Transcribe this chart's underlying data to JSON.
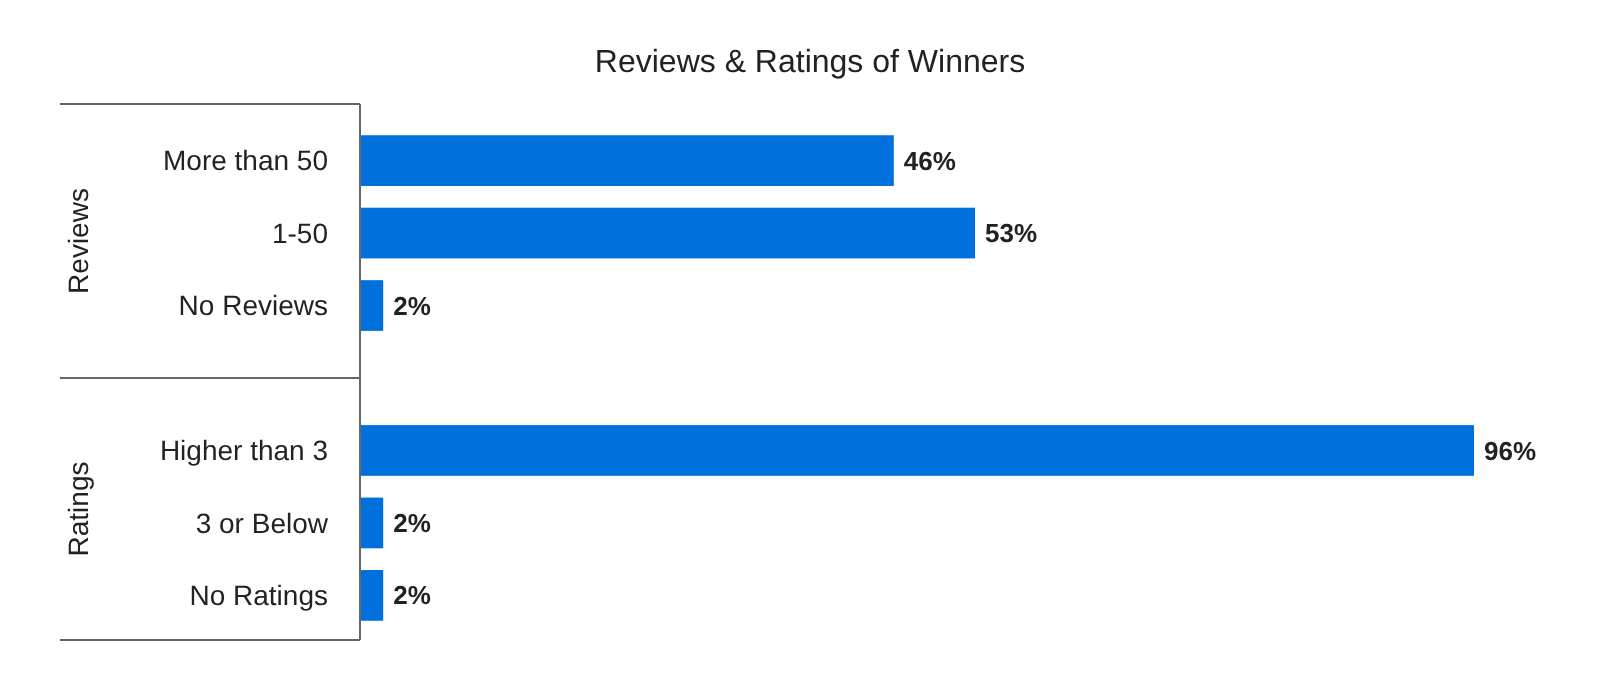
{
  "chart_data": {
    "type": "bar",
    "orientation": "horizontal",
    "title": "Reviews & Ratings of Winners",
    "categories": [
      "More than 50",
      "1-50",
      "No Reviews",
      null,
      "Higher than 3",
      "3 or Below",
      "No Ratings"
    ],
    "values": [
      46,
      53,
      2,
      null,
      96,
      2,
      2
    ],
    "value_labels": [
      "46%",
      "53%",
      "2%",
      null,
      "96%",
      "2%",
      "2%"
    ],
    "color": "#0070dd",
    "annotations": [
      "Reviews",
      "Ratings"
    ]
  }
}
